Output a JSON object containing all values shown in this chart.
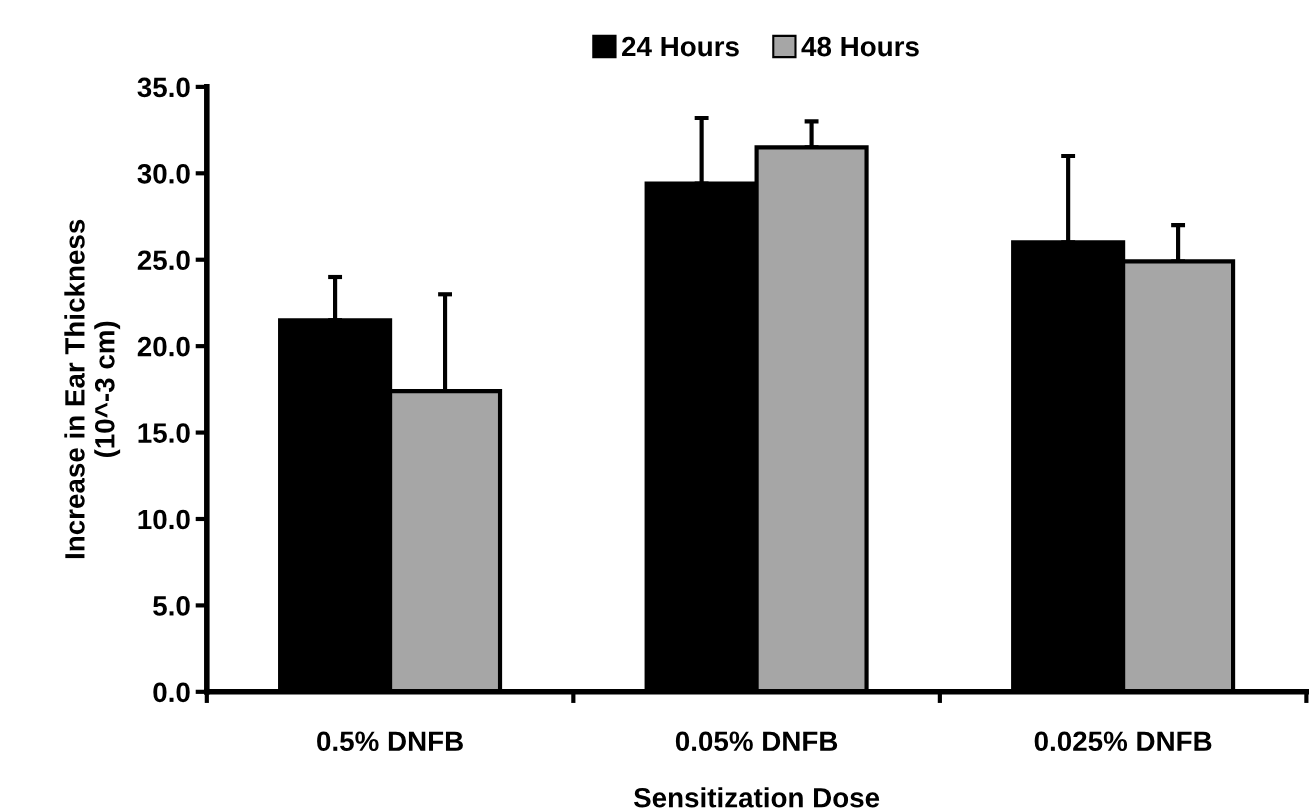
{
  "chart_data": {
    "type": "bar",
    "xlabel": "Sensitization Dose",
    "ylabel": "Increase in Ear Thickness\n(10^-3 cm)",
    "categories": [
      "0.5% DNFB",
      "0.05% DNFB",
      "0.025% DNFB"
    ],
    "series": [
      {
        "name": "24 Hours",
        "color": "#000000",
        "values": [
          21.5,
          29.4,
          26.0
        ],
        "errors": [
          [
            21.5,
            24.0
          ],
          [
            29.4,
            33.2
          ],
          [
            26.0,
            31.0
          ]
        ]
      },
      {
        "name": "48 Hours",
        "color": "#a6a6a6",
        "values": [
          17.4,
          31.5,
          24.9
        ],
        "errors": [
          [
            17.4,
            23.0
          ],
          [
            31.5,
            33.0
          ],
          [
            24.9,
            27.0
          ]
        ]
      }
    ],
    "ylim": [
      0,
      35
    ],
    "yticks": [
      {
        "value": 0,
        "label": "0.0"
      },
      {
        "value": 5,
        "label": "5.0"
      },
      {
        "value": 10,
        "label": "10.0"
      },
      {
        "value": 15,
        "label": "15.0"
      },
      {
        "value": 20,
        "label": "20.0"
      },
      {
        "value": 25,
        "label": "25.0"
      },
      {
        "value": 30,
        "label": "30.0"
      },
      {
        "value": 35,
        "label": "35.0"
      }
    ],
    "grid": false,
    "legend": "top"
  }
}
